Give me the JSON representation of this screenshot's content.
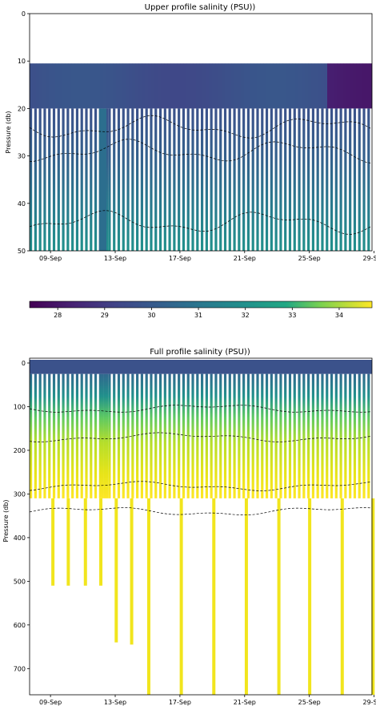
{
  "chart_data": [
    {
      "type": "heatmap",
      "title": "Upper profile salinity (PSU))",
      "xlabel": "",
      "ylabel": "Pressure (db)",
      "ylim": [
        50,
        0
      ],
      "y_ticks": [
        0,
        10,
        20,
        30,
        40,
        50
      ],
      "x_ticks": [
        "09-Sep",
        "13-Sep",
        "17-Sep",
        "21-Sep",
        "25-Sep",
        "29-Sep"
      ],
      "x_range_days": [
        "2023-09-07T12",
        "2023-09-29T18"
      ],
      "description_values": {
        "surface_layer_pressure_db": [
          10.5,
          20
        ],
        "surface_salinity_psu": 29.5,
        "salinity_at_50db_psu": 31.6,
        "contour_levels_psu": [
          30,
          31,
          32
        ]
      }
    },
    {
      "type": "heatmap",
      "title": "Full profile salinity (PSU))",
      "xlabel": "",
      "ylabel": "Pressure (db)",
      "ylim": [
        760,
        0
      ],
      "y_ticks": [
        0,
        100,
        200,
        300,
        400,
        500,
        600,
        700
      ],
      "x_ticks": [
        "09-Sep",
        "13-Sep",
        "17-Sep",
        "21-Sep",
        "25-Sep",
        "29-Sep"
      ],
      "profile_max_depth_db": 310,
      "deep_casts": [
        {
          "date": "09-Sep",
          "max_db": 510
        },
        {
          "date": "10-Sep",
          "max_db": 510
        },
        {
          "date": "11-Sep",
          "max_db": 510
        },
        {
          "date": "12-Sep",
          "max_db": 510
        },
        {
          "date": "12-Sep-late",
          "max_db": 640
        },
        {
          "date": "13-Sep-late",
          "max_db": 645
        },
        {
          "date": "15-Sep",
          "max_db": 760
        },
        {
          "date": "17-Sep",
          "max_db": 760
        },
        {
          "date": "19-Sep",
          "max_db": 760
        },
        {
          "date": "21-Sep",
          "max_db": 760
        },
        {
          "date": "23-Sep",
          "max_db": 760
        },
        {
          "date": "25-Sep",
          "max_db": 760
        },
        {
          "date": "27-Sep",
          "max_db": 760
        },
        {
          "date": "29-Sep",
          "max_db": 760
        }
      ]
    }
  ],
  "colorbar": {
    "ticks": [
      "28",
      "29",
      "30",
      "31",
      "32",
      "33",
      "34"
    ],
    "range": [
      27.4,
      34.7
    ],
    "colormap": "viridis"
  }
}
